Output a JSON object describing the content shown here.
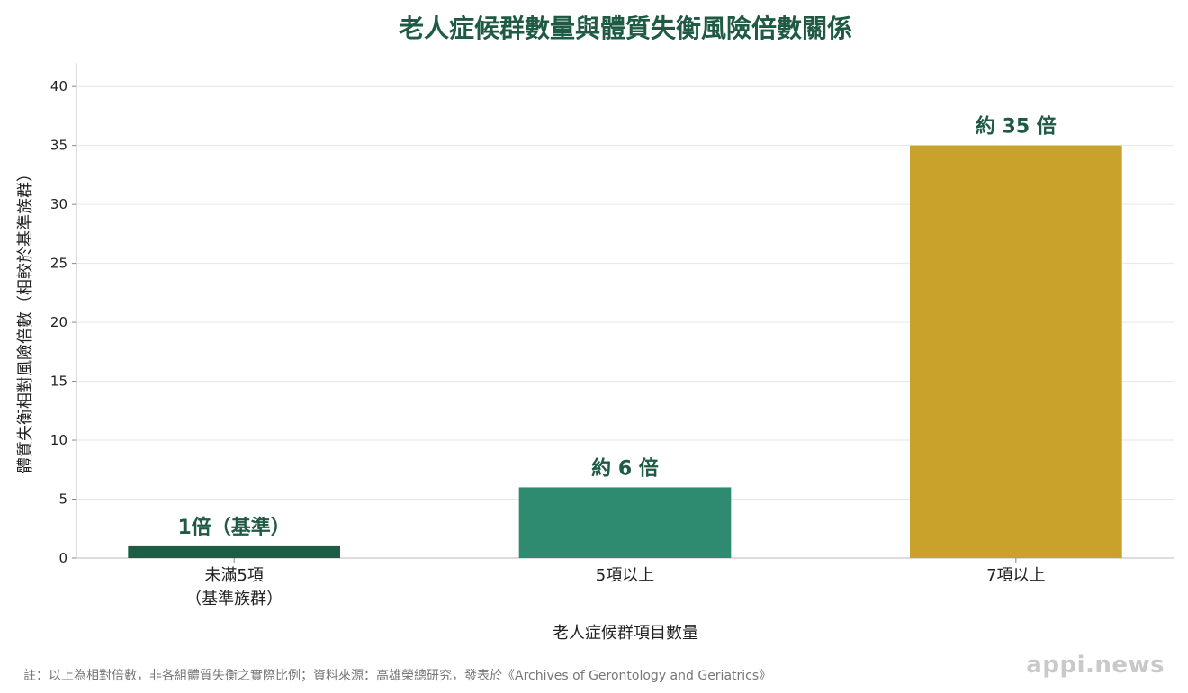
{
  "chart_data": {
    "type": "bar",
    "title": "老人症候群數量與體質失衡風險倍數關係",
    "xlabel": "老人症候群項目數量",
    "ylabel": "體質失衡相對風險倍數（相較於基準族群）",
    "categories": [
      [
        "未滿5項",
        "（基準族群）"
      ],
      [
        "5項以上"
      ],
      [
        "7項以上"
      ]
    ],
    "values": [
      1,
      6,
      35
    ],
    "data_labels": [
      "1倍（基準）",
      "約 6 倍",
      "約 35 倍"
    ],
    "colors": [
      "#1e5c46",
      "#2e8b70",
      "#c9a22b"
    ],
    "ylim": [
      0,
      42
    ],
    "yticks": [
      0,
      5,
      10,
      15,
      20,
      25,
      30,
      35,
      40
    ],
    "grid": true
  },
  "footnote": "註：以上為相對倍數，非各組體質失衡之實際比例；資料來源：高雄榮總研究，發表於《Archives of Gerontology and Geriatrics》",
  "watermark": "appi.news"
}
